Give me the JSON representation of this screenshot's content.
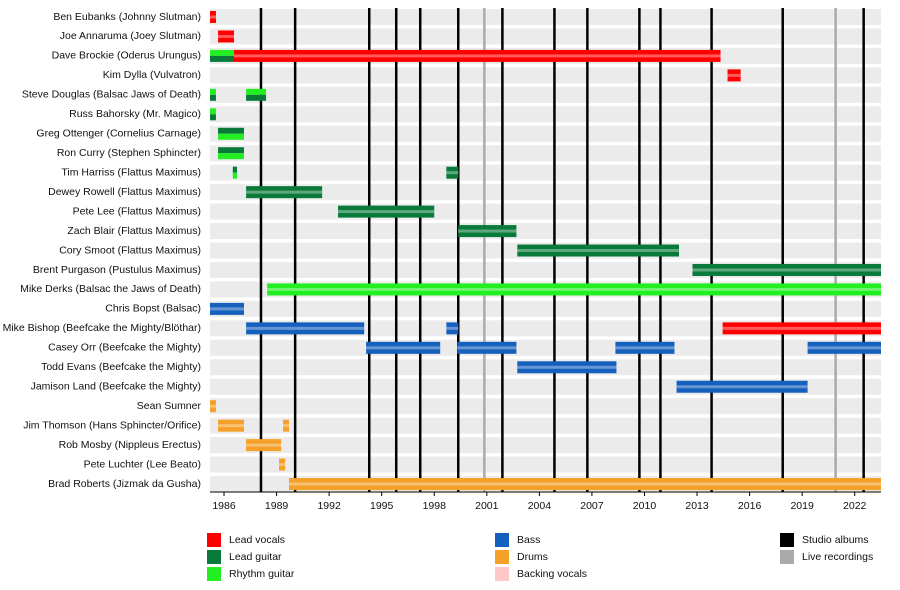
{
  "chart_data": {
    "type": "timeline",
    "xlim": [
      1985.2,
      2023.5
    ],
    "xticks": [
      1986,
      1989,
      1992,
      1995,
      1998,
      2001,
      2004,
      2007,
      2010,
      2013,
      2016,
      2019,
      2022
    ],
    "roles": [
      {
        "name": "Lead vocals",
        "color": "#ff0000"
      },
      {
        "name": "Lead guitar",
        "color": "#0a7a3a"
      },
      {
        "name": "Rhythm guitar",
        "color": "#22ee22"
      },
      {
        "name": "Bass",
        "color": "#1560bd"
      },
      {
        "name": "Drums",
        "color": "#f5a028"
      },
      {
        "name": "Backing vocals",
        "color": "#ffc8c8"
      }
    ],
    "events": [
      {
        "name": "Studio albums",
        "color": "#000000",
        "x": [
          1988.11,
          1990.06,
          1994.29,
          1995.83,
          1997.2,
          1999.37,
          2001.89,
          2004.86,
          2006.74,
          2009.71,
          2010.91,
          2013.83,
          2017.89,
          2022.51
        ]
      },
      {
        "name": "Live recordings",
        "color": "#aaaaaa",
        "x": [
          2000.86,
          2020.91
        ]
      }
    ],
    "members": [
      {
        "name": "Ben Eubanks (Johnny Slutman)",
        "bars": [
          {
            "roles": [
              "Lead vocals"
            ],
            "start": 1985.2,
            "end": 1985.54
          }
        ]
      },
      {
        "name": "Joe Annaruma (Joey Slutman)",
        "bars": [
          {
            "roles": [
              "Lead vocals"
            ],
            "start": 1985.66,
            "end": 1986.57
          }
        ]
      },
      {
        "name": "Dave Brockie (Oderus Urungus)",
        "bars": [
          {
            "roles": [
              "Rhythm guitar",
              "Lead guitar"
            ],
            "start": 1985.2,
            "end": 1986.57
          },
          {
            "roles": [
              "Lead vocals"
            ],
            "start": 1986.57,
            "end": 2014.34
          }
        ]
      },
      {
        "name": "Kim Dylla (Vulvatron)",
        "bars": [
          {
            "roles": [
              "Lead vocals"
            ],
            "start": 2014.74,
            "end": 2015.49
          }
        ]
      },
      {
        "name": "Steve Douglas (Balsac Jaws of Death)",
        "bars": [
          {
            "roles": [
              "Rhythm guitar",
              "Lead guitar"
            ],
            "start": 1985.2,
            "end": 1985.54
          },
          {
            "roles": [
              "Rhythm guitar",
              "Lead guitar"
            ],
            "start": 1987.26,
            "end": 1988.4
          }
        ]
      },
      {
        "name": "Russ Bahorsky (Mr. Magico)",
        "bars": [
          {
            "roles": [
              "Rhythm guitar",
              "Lead guitar"
            ],
            "start": 1985.2,
            "end": 1985.54
          }
        ]
      },
      {
        "name": "Greg Ottenger (Cornelius Carnage)",
        "bars": [
          {
            "roles": [
              "Lead guitar",
              "Rhythm guitar"
            ],
            "start": 1985.66,
            "end": 1987.14
          }
        ]
      },
      {
        "name": "Ron Curry (Stephen Sphincter)",
        "bars": [
          {
            "roles": [
              "Lead guitar",
              "Rhythm guitar"
            ],
            "start": 1985.66,
            "end": 1987.14
          }
        ]
      },
      {
        "name": "Tim Harriss (Flattus Maximus)",
        "bars": [
          {
            "roles": [
              "Lead guitar",
              "Rhythm guitar"
            ],
            "start": 1986.5,
            "end": 1986.74
          },
          {
            "roles": [
              "Lead guitar"
            ],
            "start": 1998.69,
            "end": 1999.37
          }
        ]
      },
      {
        "name": "Dewey Rowell (Flattus Maximus)",
        "bars": [
          {
            "roles": [
              "Lead guitar"
            ],
            "start": 1987.26,
            "end": 1991.6
          }
        ]
      },
      {
        "name": "Pete Lee (Flattus Maximus)",
        "bars": [
          {
            "roles": [
              "Lead guitar"
            ],
            "start": 1992.51,
            "end": 1998.0
          }
        ]
      },
      {
        "name": "Zach Blair (Flattus Maximus)",
        "bars": [
          {
            "roles": [
              "Lead guitar"
            ],
            "start": 1999.37,
            "end": 2002.69
          }
        ]
      },
      {
        "name": "Cory Smoot (Flattus Maximus)",
        "bars": [
          {
            "roles": [
              "Lead guitar"
            ],
            "start": 2002.74,
            "end": 2011.97
          }
        ]
      },
      {
        "name": "Brent Purgason (Pustulus Maximus)",
        "bars": [
          {
            "roles": [
              "Lead guitar"
            ],
            "start": 2012.74,
            "end": 2023.5
          }
        ]
      },
      {
        "name": "Mike Derks (Balsac the Jaws of Death)",
        "bars": [
          {
            "roles": [
              "Rhythm guitar"
            ],
            "start": 1988.46,
            "end": 2023.5
          }
        ]
      },
      {
        "name": "Chris Bopst (Balsac)",
        "bars": [
          {
            "roles": [
              "Bass"
            ],
            "start": 1985.2,
            "end": 1987.14
          }
        ]
      },
      {
        "name": "Mike Bishop (Beefcake the Mighty/Blöthar)",
        "bars": [
          {
            "roles": [
              "Bass"
            ],
            "start": 1987.26,
            "end": 1994.0
          },
          {
            "roles": [
              "Bass"
            ],
            "start": 1998.69,
            "end": 1999.37
          },
          {
            "roles": [
              "Lead vocals"
            ],
            "start": 2014.46,
            "end": 2023.5
          }
        ]
      },
      {
        "name": "Casey Orr (Beefcake the Mighty)",
        "bars": [
          {
            "roles": [
              "Bass"
            ],
            "start": 1994.11,
            "end": 1998.34
          },
          {
            "roles": [
              "Bass"
            ],
            "start": 1999.31,
            "end": 2002.69
          },
          {
            "roles": [
              "Bass"
            ],
            "start": 2008.34,
            "end": 2011.71
          },
          {
            "roles": [
              "Bass"
            ],
            "start": 2019.31,
            "end": 2023.5
          }
        ]
      },
      {
        "name": "Todd Evans (Beefcake the Mighty)",
        "bars": [
          {
            "roles": [
              "Bass"
            ],
            "start": 2002.74,
            "end": 2008.4
          }
        ]
      },
      {
        "name": "Jamison Land (Beefcake the Mighty)",
        "bars": [
          {
            "roles": [
              "Bass"
            ],
            "start": 2011.83,
            "end": 2019.31
          }
        ]
      },
      {
        "name": "Sean Sumner",
        "bars": [
          {
            "roles": [
              "Drums"
            ],
            "start": 1985.2,
            "end": 1985.54
          }
        ]
      },
      {
        "name": "Jim Thomson (Hans Sphincter/Orifice)",
        "bars": [
          {
            "roles": [
              "Drums"
            ],
            "start": 1985.66,
            "end": 1987.14
          },
          {
            "roles": [
              "Drums"
            ],
            "start": 1989.37,
            "end": 1989.71
          }
        ]
      },
      {
        "name": "Rob Mosby (Nippleus Erectus)",
        "bars": [
          {
            "roles": [
              "Drums"
            ],
            "start": 1987.26,
            "end": 1989.26
          }
        ]
      },
      {
        "name": "Pete Luchter (Lee Beato)",
        "bars": [
          {
            "roles": [
              "Drums"
            ],
            "start": 1989.14,
            "end": 1989.49
          }
        ]
      },
      {
        "name": "Brad Roberts (Jizmak da Gusha)",
        "bars": [
          {
            "roles": [
              "Drums"
            ],
            "start": 1989.71,
            "end": 2023.5
          }
        ]
      }
    ]
  }
}
